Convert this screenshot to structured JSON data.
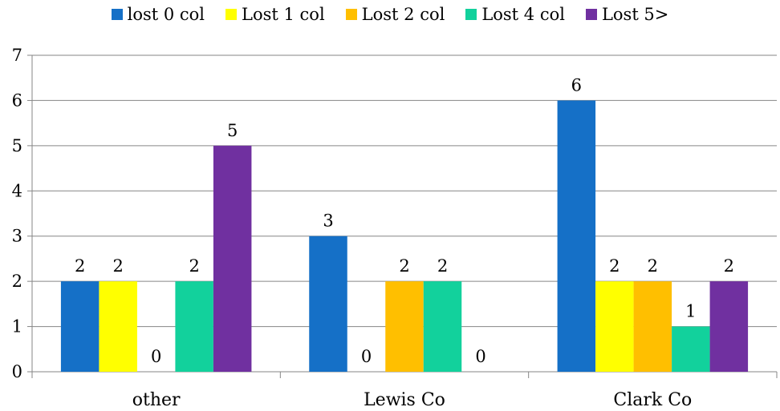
{
  "chart_data": {
    "type": "bar",
    "categories": [
      "other",
      "Lewis Co",
      "Clark Co"
    ],
    "series": [
      {
        "name": "lost 0 col",
        "values": [
          2,
          3,
          6
        ],
        "color": "#1570c7"
      },
      {
        "name": "Lost 1 col",
        "values": [
          2,
          0,
          2
        ],
        "color": "#ffff00"
      },
      {
        "name": "Lost 2 col",
        "values": [
          0,
          2,
          2
        ],
        "color": "#ffbf00"
      },
      {
        "name": "Lost 4 col",
        "values": [
          2,
          2,
          1
        ],
        "color": "#12d19c"
      },
      {
        "name": "Lost 5>",
        "values": [
          5,
          0,
          2
        ],
        "color": "#7030a0"
      }
    ],
    "data_labels": [
      [
        "2",
        "3",
        "6"
      ],
      [
        "2",
        "0",
        "2"
      ],
      [
        "0",
        "2",
        "2"
      ],
      [
        "2",
        "2",
        "1"
      ],
      [
        "5",
        "0",
        "2"
      ]
    ],
    "yticks": [
      "0",
      "1",
      "2",
      "3",
      "4",
      "5",
      "6",
      "7"
    ],
    "ylim": [
      0,
      7
    ],
    "grid": true,
    "legend_position": "top"
  }
}
